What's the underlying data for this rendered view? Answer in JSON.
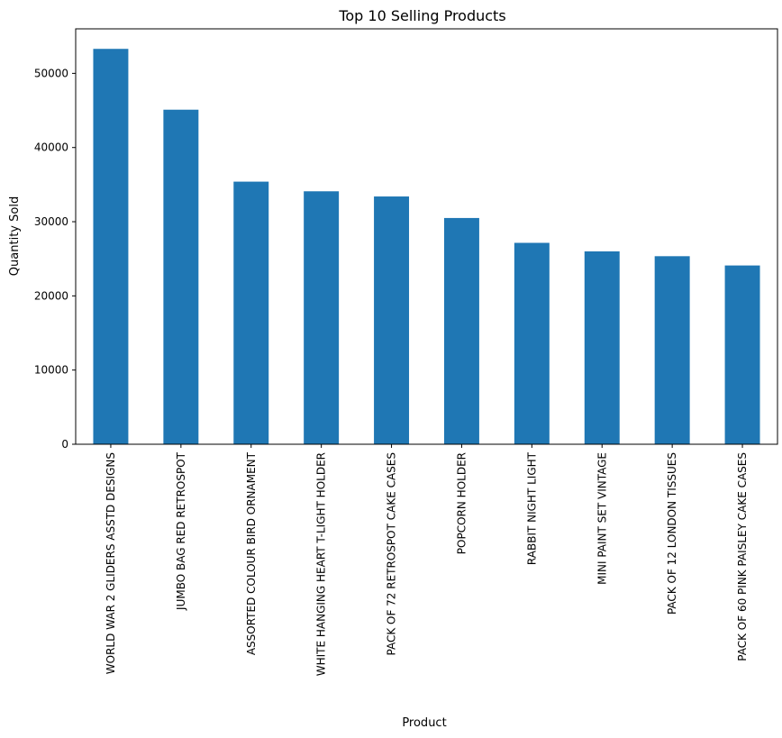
{
  "chart_data": {
    "type": "bar",
    "title": "Top 10 Selling Products",
    "xlabel": "Product",
    "ylabel": "Quantity Sold",
    "categories": [
      "WORLD WAR 2 GLIDERS ASSTD DESIGNS",
      "JUMBO BAG RED RETROSPOT",
      "ASSORTED COLOUR BIRD ORNAMENT",
      "WHITE HANGING HEART T-LIGHT HOLDER",
      "PACK OF 72 RETROSPOT CAKE CASES",
      "POPCORN HOLDER",
      "RABBIT NIGHT LIGHT",
      "MINI PAINT SET VINTAGE",
      "PACK OF 12 LONDON TISSUES",
      "PACK OF 60 PINK PAISLEY CAKE CASES"
    ],
    "values": [
      53300,
      45100,
      35400,
      34100,
      33400,
      30500,
      27150,
      26000,
      25350,
      24100
    ],
    "ylim": [
      0,
      56000
    ],
    "yticks": [
      0,
      10000,
      20000,
      30000,
      40000,
      50000
    ],
    "ytick_labels": [
      "0",
      "10000",
      "20000",
      "30000",
      "40000",
      "50000"
    ],
    "bar_color": "#1f77b4",
    "grid": false,
    "legend": "none"
  }
}
